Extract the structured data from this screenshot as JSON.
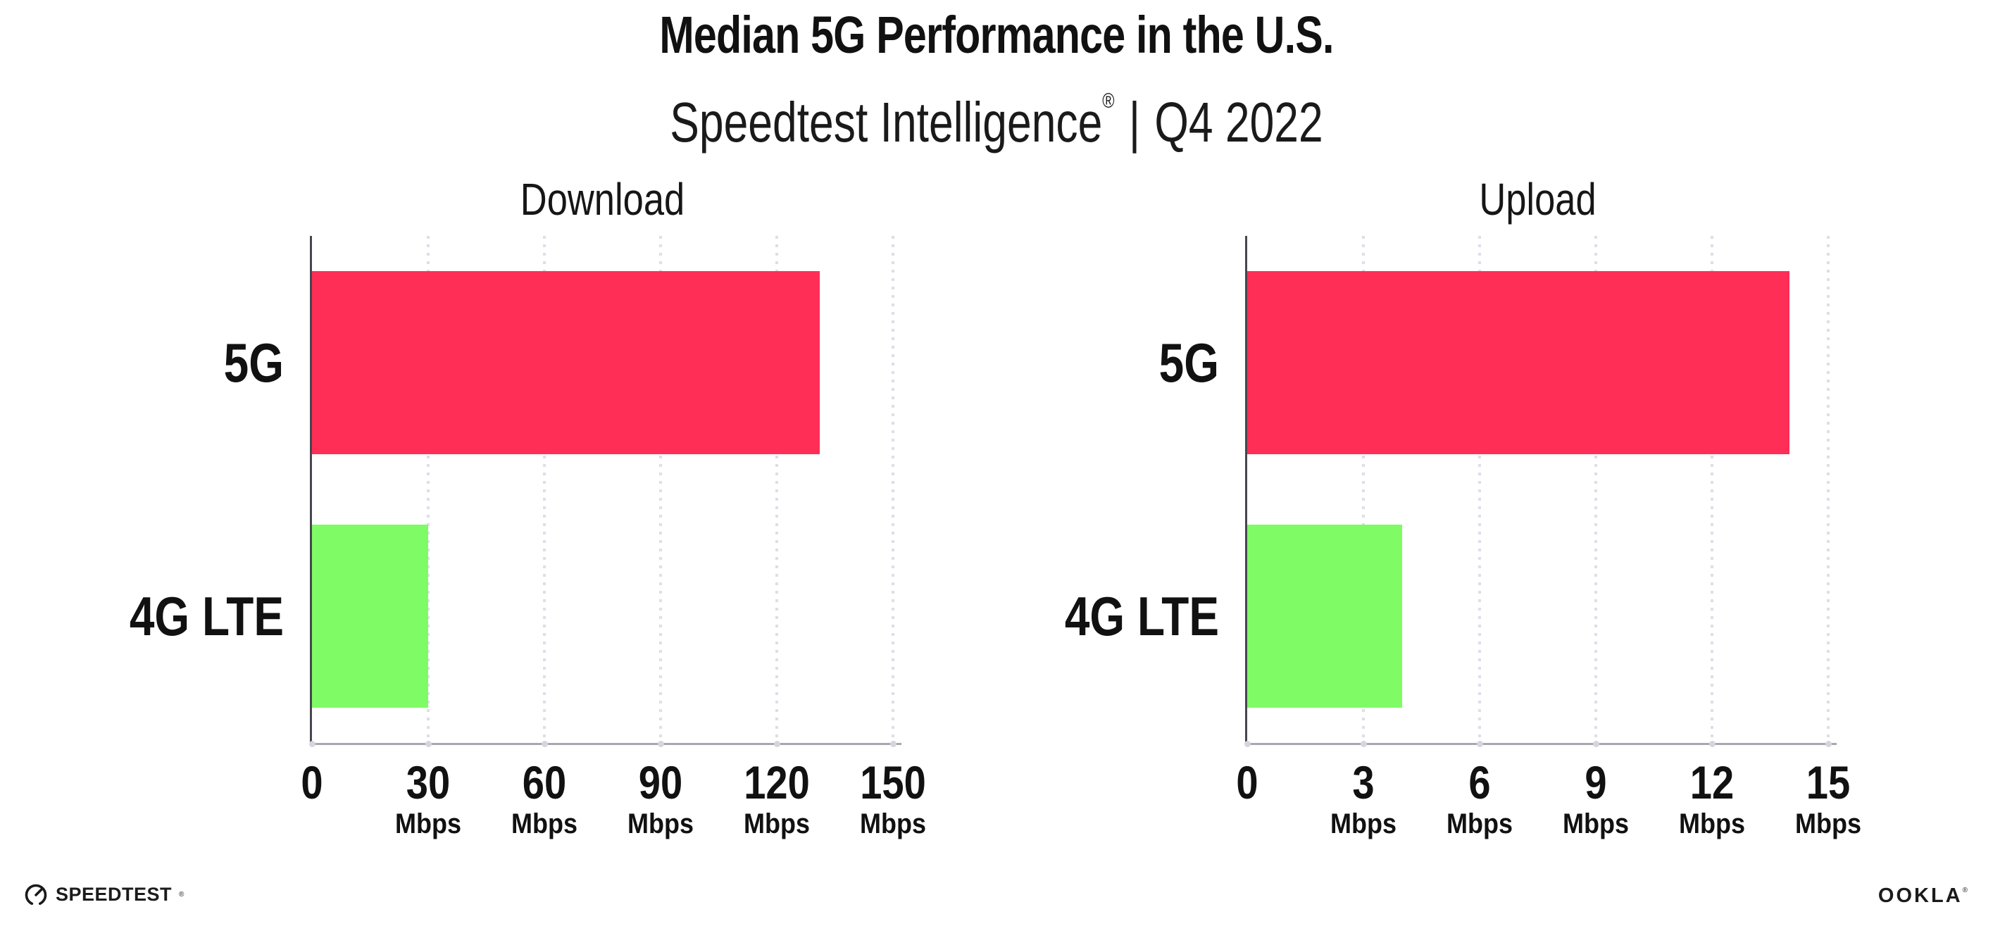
{
  "header": {
    "title": "Median 5G Performance in the U.S.",
    "subtitle_brand": "Speedtest Intelligence",
    "subtitle_reg": "®",
    "subtitle_divider": "|",
    "subtitle_period": "Q4 2022"
  },
  "chart_data": [
    {
      "type": "bar",
      "orientation": "horizontal",
      "title": "Download",
      "categories": [
        "5G",
        "4G LTE"
      ],
      "values": [
        131,
        30
      ],
      "unit": "Mbps",
      "xlim": [
        0,
        150
      ],
      "ticks": [
        0,
        30,
        60,
        90,
        120,
        150
      ],
      "bar_colors": [
        "#FE2E56",
        "#7FFB66"
      ],
      "grid": "dotted-vertical-gridlines",
      "legend": "none"
    },
    {
      "type": "bar",
      "orientation": "horizontal",
      "title": "Upload",
      "categories": [
        "5G",
        "4G LTE"
      ],
      "values": [
        14,
        4
      ],
      "unit": "Mbps",
      "xlim": [
        0,
        15
      ],
      "ticks": [
        0,
        3,
        6,
        9,
        12,
        15
      ],
      "bar_colors": [
        "#FE2E56",
        "#7FFB66"
      ],
      "grid": "dotted-vertical-gridlines",
      "legend": "none"
    }
  ],
  "footer": {
    "speedtest_wordmark": "SPEEDTEST",
    "speedtest_mark": "®",
    "ookla_wordmark": "OOKLA",
    "ookla_mark": "®"
  },
  "colors": {
    "bar_5g": "#FE2E56",
    "bar_4g_lte": "#7FFB66",
    "text": "#1A1A1A",
    "gridline": "#DEDEE8",
    "axis_line": "#A8A8B0",
    "axis_spine": "#46464E",
    "background": "#FFFFFF"
  }
}
